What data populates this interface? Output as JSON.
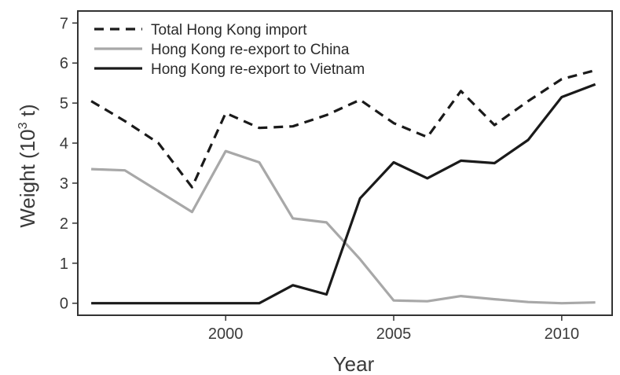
{
  "chart_data": {
    "type": "line",
    "xlabel": "Year",
    "ylabel_main": "Weight (10",
    "ylabel_sup": "3",
    "ylabel_tail": " t)",
    "xlim": [
      1995.6,
      2011.5
    ],
    "ylim": [
      -0.3,
      7.3
    ],
    "xticks": [
      2000,
      2005,
      2010
    ],
    "yticks": [
      0,
      1,
      2,
      3,
      4,
      5,
      6,
      7
    ],
    "grid": false,
    "legend_position": "top-left",
    "x": [
      1996,
      1997,
      1998,
      1999,
      2000,
      2001,
      2002,
      2003,
      2004,
      2005,
      2006,
      2007,
      2008,
      2009,
      2010,
      2011
    ],
    "series": [
      {
        "name": "Total Hong Kong import",
        "color": "#1a1a1a",
        "style": "dashed",
        "values": [
          5.05,
          4.55,
          4.0,
          2.9,
          4.75,
          4.38,
          4.42,
          4.7,
          5.08,
          4.5,
          4.15,
          5.3,
          4.45,
          5.05,
          5.6,
          5.82
        ]
      },
      {
        "name": "Hong Kong re-export to China",
        "color": "#a8a8a8",
        "style": "solid",
        "values": [
          3.35,
          3.32,
          2.8,
          2.28,
          3.8,
          3.52,
          2.12,
          2.02,
          1.1,
          0.07,
          0.05,
          0.18,
          0.1,
          0.03,
          0.0,
          0.02
        ]
      },
      {
        "name": "Hong Kong re-export to Vietnam",
        "color": "#1a1a1a",
        "style": "solid",
        "values": [
          0.0,
          0.0,
          0.0,
          0.0,
          0.0,
          0.0,
          0.45,
          0.22,
          2.62,
          3.52,
          3.12,
          3.56,
          3.5,
          4.08,
          5.15,
          5.47
        ]
      }
    ]
  }
}
